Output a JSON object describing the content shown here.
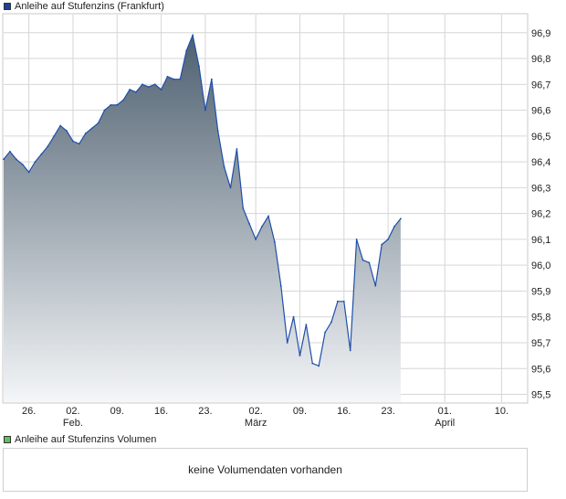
{
  "colors": {
    "line": "#1f4fa8",
    "fill_top": "#4e6070",
    "fill_bottom": "#f4f6f8",
    "grid": "#d6d6d6",
    "legend_price": "#1f3f99",
    "legend_volume": "#5fbf5f"
  },
  "legend": {
    "price_label": "Anleihe auf Stufenzins (Frankfurt)",
    "volume_label": "Anleihe auf Stufenzins Volumen"
  },
  "volume_panel": {
    "message": "keine Volumendaten vorhanden"
  },
  "chart_data": {
    "type": "area",
    "title": "Anleihe auf Stufenzins (Frankfurt)",
    "ylim": [
      95.47,
      96.97
    ],
    "yticks": [
      95.5,
      95.6,
      95.7,
      95.8,
      95.9,
      96.0,
      96.1,
      96.2,
      96.3,
      96.4,
      96.5,
      96.6,
      96.7,
      96.8,
      96.9
    ],
    "ytick_labels": [
      "95,5",
      "95,6",
      "95,7",
      "95,8",
      "95,9",
      "96,0",
      "96,1",
      "96,2",
      "96,3",
      "96,4",
      "96,5",
      "96,6",
      "96,7",
      "96,8",
      "96,9"
    ],
    "x_range": [
      "2024-01-22",
      "2024-04-14"
    ],
    "xticks": [
      {
        "date": "2024-01-26",
        "label": "26.",
        "sublabel": ""
      },
      {
        "date": "2024-02-02",
        "label": "02.",
        "sublabel": "Feb."
      },
      {
        "date": "2024-02-09",
        "label": "09.",
        "sublabel": ""
      },
      {
        "date": "2024-02-16",
        "label": "16.",
        "sublabel": ""
      },
      {
        "date": "2024-02-23",
        "label": "23.",
        "sublabel": ""
      },
      {
        "date": "2024-03-02",
        "label": "02.",
        "sublabel": "März"
      },
      {
        "date": "2024-03-09",
        "label": "09.",
        "sublabel": ""
      },
      {
        "date": "2024-03-16",
        "label": "16.",
        "sublabel": ""
      },
      {
        "date": "2024-03-23",
        "label": "23.",
        "sublabel": ""
      },
      {
        "date": "2024-04-01",
        "label": "01.",
        "sublabel": "April"
      },
      {
        "date": "2024-04-10",
        "label": "10.",
        "sublabel": ""
      }
    ],
    "grid": true,
    "series": [
      {
        "name": "Anleihe auf Stufenzins (Frankfurt)",
        "points": [
          [
            "2024-01-22",
            96.41
          ],
          [
            "2024-01-23",
            96.44
          ],
          [
            "2024-01-24",
            96.41
          ],
          [
            "2024-01-25",
            96.39
          ],
          [
            "2024-01-26",
            96.36
          ],
          [
            "2024-01-27",
            96.4
          ],
          [
            "2024-01-28",
            96.43
          ],
          [
            "2024-01-29",
            96.46
          ],
          [
            "2024-01-30",
            96.5
          ],
          [
            "2024-01-31",
            96.54
          ],
          [
            "2024-02-01",
            96.52
          ],
          [
            "2024-02-02",
            96.48
          ],
          [
            "2024-02-03",
            96.47
          ],
          [
            "2024-02-04",
            96.51
          ],
          [
            "2024-02-05",
            96.53
          ],
          [
            "2024-02-06",
            96.55
          ],
          [
            "2024-02-07",
            96.6
          ],
          [
            "2024-02-08",
            96.62
          ],
          [
            "2024-02-09",
            96.62
          ],
          [
            "2024-02-10",
            96.64
          ],
          [
            "2024-02-11",
            96.68
          ],
          [
            "2024-02-12",
            96.67
          ],
          [
            "2024-02-13",
            96.7
          ],
          [
            "2024-02-14",
            96.69
          ],
          [
            "2024-02-15",
            96.7
          ],
          [
            "2024-02-16",
            96.68
          ],
          [
            "2024-02-17",
            96.73
          ],
          [
            "2024-02-18",
            96.72
          ],
          [
            "2024-02-19",
            96.72
          ],
          [
            "2024-02-20",
            96.83
          ],
          [
            "2024-02-21",
            96.89
          ],
          [
            "2024-02-22",
            96.77
          ],
          [
            "2024-02-23",
            96.6
          ],
          [
            "2024-02-24",
            96.72
          ],
          [
            "2024-02-25",
            96.52
          ],
          [
            "2024-02-26",
            96.38
          ],
          [
            "2024-02-27",
            96.3
          ],
          [
            "2024-02-28",
            96.45
          ],
          [
            "2024-02-29",
            96.22
          ],
          [
            "2024-03-01",
            96.16
          ],
          [
            "2024-03-02",
            96.1
          ],
          [
            "2024-03-03",
            96.15
          ],
          [
            "2024-03-04",
            96.19
          ],
          [
            "2024-03-05",
            96.09
          ],
          [
            "2024-03-06",
            95.92
          ],
          [
            "2024-03-07",
            95.7
          ],
          [
            "2024-03-08",
            95.8
          ],
          [
            "2024-03-09",
            95.65
          ],
          [
            "2024-03-10",
            95.77
          ],
          [
            "2024-03-11",
            95.62
          ],
          [
            "2024-03-12",
            95.61
          ],
          [
            "2024-03-13",
            95.74
          ],
          [
            "2024-03-14",
            95.78
          ],
          [
            "2024-03-15",
            95.86
          ],
          [
            "2024-03-16",
            95.86
          ],
          [
            "2024-03-17",
            95.67
          ],
          [
            "2024-03-18",
            96.1
          ],
          [
            "2024-03-19",
            96.02
          ],
          [
            "2024-03-20",
            96.01
          ],
          [
            "2024-03-21",
            95.92
          ],
          [
            "2024-03-22",
            96.08
          ],
          [
            "2024-03-23",
            96.1
          ],
          [
            "2024-03-24",
            96.15
          ],
          [
            "2024-03-25",
            96.18
          ]
        ]
      }
    ]
  }
}
